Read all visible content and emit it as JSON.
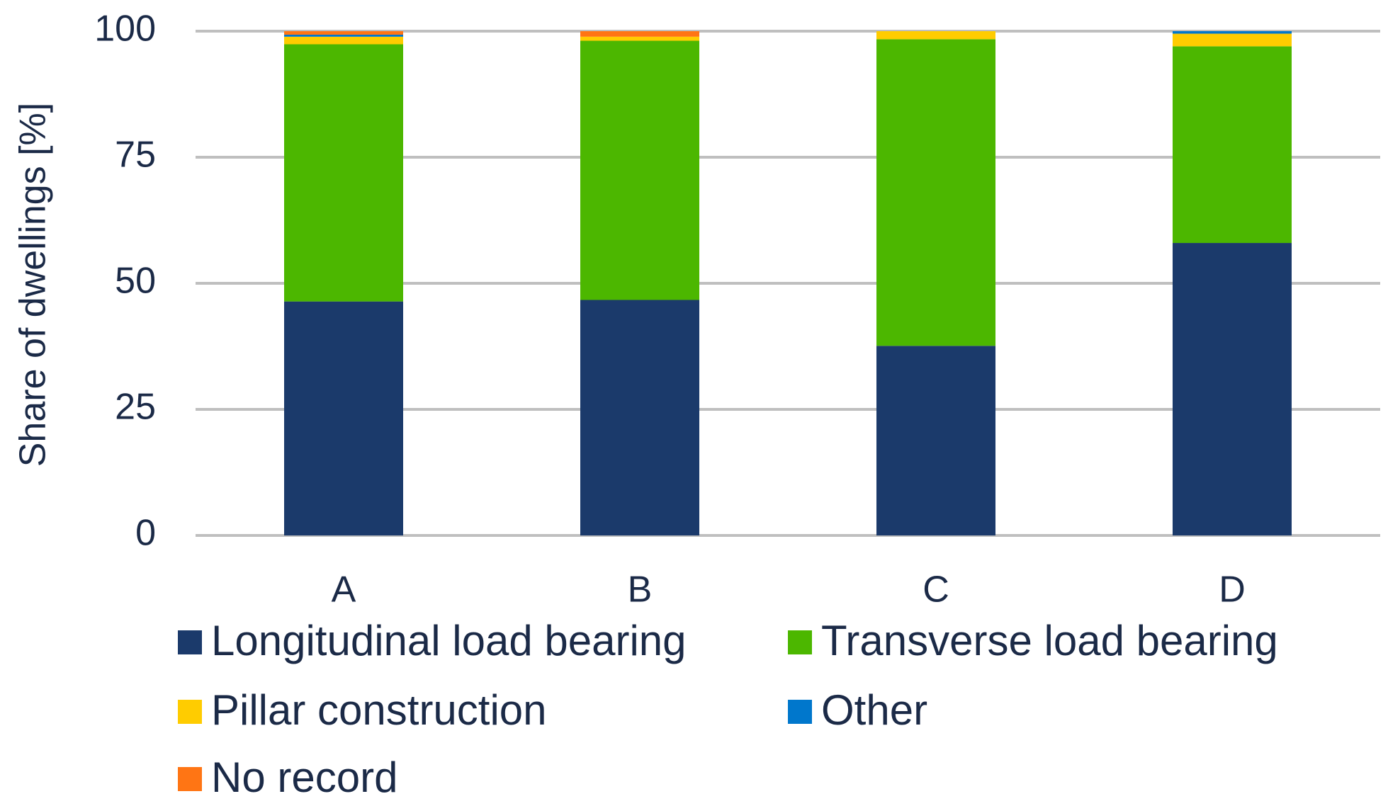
{
  "chart_data": {
    "type": "stacked_bar",
    "y_label": "Share of dwellings [%]",
    "categories": [
      "A",
      "B",
      "C",
      "D"
    ],
    "series": [
      {
        "name": "Longitudinal load bearing",
        "color": "#1b3a6b",
        "values": [
          46.4,
          46.7,
          37.6,
          58.0
        ]
      },
      {
        "name": "Transverse load bearing",
        "color": "#4cb700",
        "values": [
          51.0,
          51.4,
          60.8,
          39.0
        ]
      },
      {
        "name": "Pillar construction",
        "color": "#ffcc00",
        "values": [
          1.5,
          0.8,
          1.6,
          2.5
        ]
      },
      {
        "name": "Other",
        "color": "#0077cc",
        "values": [
          0.4,
          0,
          0,
          0.5
        ]
      },
      {
        "name": "No record",
        "color": "#ff7514",
        "values": [
          0.7,
          1.1,
          0,
          0
        ]
      }
    ],
    "ylim": [
      0,
      100
    ],
    "yticks": [
      0,
      25,
      50,
      75,
      100
    ],
    "grid": true,
    "legend": "bottom"
  }
}
